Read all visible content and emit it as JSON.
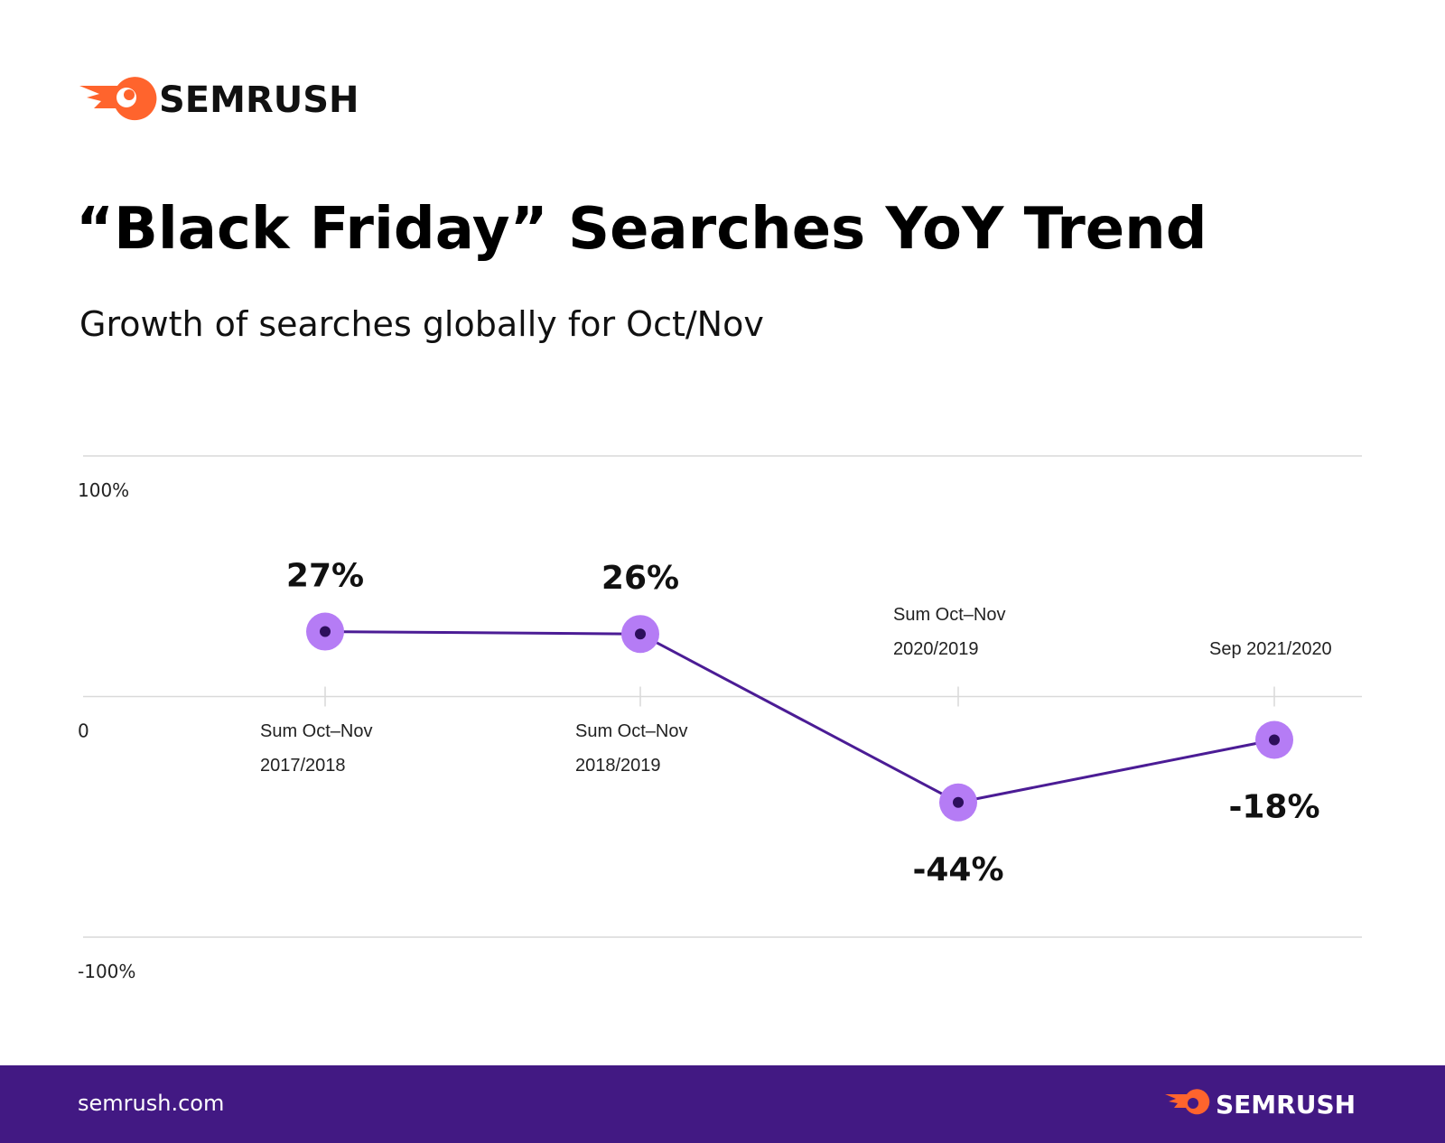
{
  "header": {
    "logo": "SEMRUSH"
  },
  "chart_data": {
    "type": "line",
    "title": "“Black Friday” Searches YoY Trend",
    "subtitle": "Growth of searches globally for Oct/Nov",
    "categories": [
      "Sum Oct–Nov 2017/2018",
      "Sum Oct–Nov 2018/2019",
      "Sum Oct–Nov 2020/2019",
      "Sep 2021/2020"
    ],
    "values": [
      27,
      26,
      -44,
      -18
    ],
    "value_labels": [
      "27%",
      "26%",
      "-44%",
      "-18%"
    ],
    "color": "#4b1c95",
    "marker_color": "#b57cf5",
    "ylim": [
      -100,
      100
    ],
    "yticks": [
      {
        "value": 100,
        "label": "100%"
      },
      0,
      {
        "value": -100,
        "label": "-100%"
      }
    ],
    "grid": true
  },
  "footer": {
    "url": "semrush.com",
    "logo": "SEMRUSH"
  }
}
